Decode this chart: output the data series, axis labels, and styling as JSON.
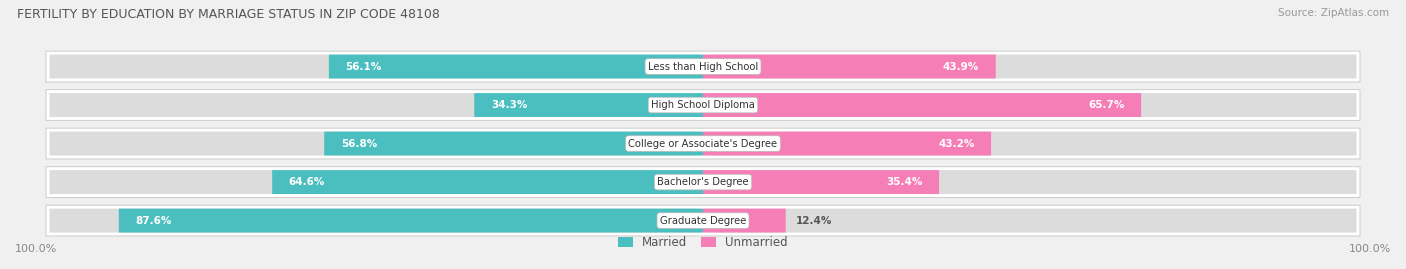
{
  "title": "FERTILITY BY EDUCATION BY MARRIAGE STATUS IN ZIP CODE 48108",
  "source": "Source: ZipAtlas.com",
  "categories": [
    "Less than High School",
    "High School Diploma",
    "College or Associate's Degree",
    "Bachelor's Degree",
    "Graduate Degree"
  ],
  "married": [
    56.1,
    34.3,
    56.8,
    64.6,
    87.6
  ],
  "unmarried": [
    43.9,
    65.7,
    43.2,
    35.4,
    12.4
  ],
  "married_color": "#4bbfbf",
  "unmarried_color": "#f57eb6",
  "bg_color": "#f0f0f0",
  "row_bg_color": "#ffffff",
  "bar_bg_color": "#dcdcdc",
  "title_color": "#555555",
  "axis_label_color": "#888888",
  "bar_height": 0.62
}
